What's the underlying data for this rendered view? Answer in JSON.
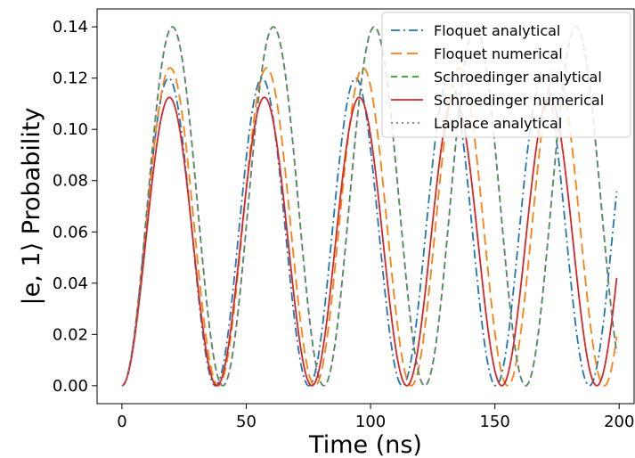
{
  "chart_data": {
    "type": "line",
    "title": "",
    "xlabel": "Time (ns)",
    "ylabel": "|e, 1⟩ Probability",
    "xlim": [
      -10,
      206
    ],
    "ylim": [
      -0.007,
      0.147
    ],
    "x_ticks": [
      0,
      50,
      100,
      150,
      200
    ],
    "y_ticks": [
      0.0,
      0.02,
      0.04,
      0.06,
      0.08,
      0.1,
      0.12,
      0.14
    ],
    "x_tick_labels": [
      "0",
      "50",
      "100",
      "150",
      "200"
    ],
    "y_tick_labels": [
      "0.00",
      "0.02",
      "0.04",
      "0.06",
      "0.08",
      "0.10",
      "0.12",
      "0.14"
    ],
    "grid": false,
    "legend_position": "top-right",
    "x_range": [
      0,
      199
    ],
    "series": [
      {
        "name": "Floquet analytical",
        "color": "#1f77b4",
        "dash": "dashdot",
        "amplitude": 0.12,
        "period_ns": 37.6
      },
      {
        "name": "Floquet numerical",
        "color": "#ff7f0e",
        "dash": "dashed",
        "amplitude": 0.124,
        "period_ns": 38.8
      },
      {
        "name": "Schroedinger analytical",
        "color": "#2ca02c",
        "dash": "dashed-short",
        "amplitude": 0.14,
        "period_ns": 40.6
      },
      {
        "name": "Schroedinger numerical",
        "color": "#d62728",
        "dash": "solid",
        "amplitude": 0.1125,
        "period_ns": 38.2
      },
      {
        "name": "Laplace analytical",
        "color": "#9467bd",
        "dash": "dotted",
        "amplitude": 0.14,
        "period_ns": 40.6
      }
    ]
  }
}
